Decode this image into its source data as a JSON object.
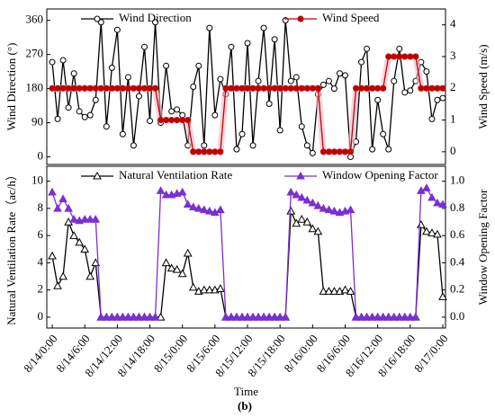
{
  "caption": "(b)",
  "chart_data": [
    {
      "type": "line",
      "ylabel": "Wind Direction (°)",
      "y2label": "Wind Speed (m/s)",
      "x": [
        0,
        1,
        2,
        3,
        4,
        5,
        6,
        7,
        8,
        9,
        10,
        11,
        12,
        13,
        14,
        15,
        16,
        17,
        18,
        19,
        20,
        21,
        22,
        23,
        24,
        25,
        26,
        27,
        28,
        29,
        30,
        31,
        32,
        33,
        34,
        35,
        36,
        37,
        38,
        39,
        40,
        41,
        42,
        43,
        44,
        45,
        46,
        47,
        48,
        49,
        50,
        51,
        52,
        53,
        54,
        55,
        56,
        57,
        58,
        59,
        60,
        61,
        62,
        63,
        64,
        65,
        66,
        67,
        68,
        69,
        70,
        71,
        72
      ],
      "xlim": [
        -1,
        72.5
      ],
      "ylim": [
        -20,
        390
      ],
      "yticks": [
        0,
        90,
        180,
        270,
        360
      ],
      "y2lim": [
        -0.4,
        4.5
      ],
      "y2ticks": [
        0,
        1,
        2,
        3,
        4
      ],
      "series": [
        {
          "name": "Wind Direction",
          "color": "#000000",
          "marker": "circle-open",
          "values": [
            250,
            100,
            255,
            130,
            220,
            120,
            105,
            110,
            150,
            355,
            80,
            235,
            335,
            60,
            210,
            30,
            160,
            290,
            95,
            355,
            90,
            240,
            120,
            125,
            110,
            30,
            185,
            240,
            30,
            340,
            110,
            205,
            165,
            290,
            20,
            60,
            300,
            30,
            200,
            340,
            140,
            310,
            70,
            360,
            200,
            210,
            80,
            30,
            10,
            165,
            190,
            200,
            180,
            220,
            215,
            0,
            40,
            250,
            285,
            20,
            150,
            60,
            20,
            200,
            285,
            170,
            175,
            200,
            250,
            225,
            100,
            150,
            155
          ]
        },
        {
          "name": "Wind Speed",
          "color": "#c00000",
          "marker": "circle",
          "axis": "y2",
          "values": [
            2,
            2,
            2,
            2,
            2,
            2,
            2,
            2,
            2,
            2,
            2,
            2,
            2,
            2,
            2,
            2,
            2,
            2,
            2,
            2,
            1,
            1,
            1,
            1,
            1,
            1,
            0,
            0,
            0,
            0,
            0,
            0,
            2,
            2,
            2,
            2,
            2,
            2,
            2,
            2,
            2,
            2,
            2,
            2,
            2,
            2,
            2,
            2,
            2,
            2,
            0,
            0,
            0,
            0,
            0,
            0,
            2,
            2,
            2,
            2,
            2,
            2,
            3,
            3,
            3,
            3,
            3,
            3,
            2,
            2,
            2,
            2,
            2
          ]
        }
      ]
    },
    {
      "type": "line",
      "ylabel": "Natural Ventilation Rate（ac/h）",
      "y2label": "Window Opening Factor",
      "xlabel": "Time",
      "x": [
        0,
        1,
        2,
        3,
        4,
        5,
        6,
        7,
        8,
        9,
        10,
        11,
        12,
        13,
        14,
        15,
        16,
        17,
        18,
        19,
        20,
        21,
        22,
        23,
        24,
        25,
        26,
        27,
        28,
        29,
        30,
        31,
        32,
        33,
        34,
        35,
        36,
        37,
        38,
        39,
        40,
        41,
        42,
        43,
        44,
        45,
        46,
        47,
        48,
        49,
        50,
        51,
        52,
        53,
        54,
        55,
        56,
        57,
        58,
        59,
        60,
        61,
        62,
        63,
        64,
        65,
        66,
        67,
        68,
        69,
        70,
        71,
        72
      ],
      "xlim": [
        -1,
        72.5
      ],
      "xticks": [
        {
          "value": 0,
          "label": "8/14/0:00"
        },
        {
          "value": 6,
          "label": "8/14/6:00"
        },
        {
          "value": 12,
          "label": "8/14/12:00"
        },
        {
          "value": 18,
          "label": "8/14/18:00"
        },
        {
          "value": 24,
          "label": "8/15/0:00"
        },
        {
          "value": 30,
          "label": "8/15/6:00"
        },
        {
          "value": 36,
          "label": "8/15/12:00"
        },
        {
          "value": 42,
          "label": "8/15/18:00"
        },
        {
          "value": 48,
          "label": "8/16/0:00"
        },
        {
          "value": 54,
          "label": "8/16/6:00"
        },
        {
          "value": 60,
          "label": "8/16/12:00"
        },
        {
          "value": 66,
          "label": "8/16/18:00"
        },
        {
          "value": 72,
          "label": "8/17/0:00"
        }
      ],
      "ylim": [
        -0.8,
        11.1
      ],
      "yticks": [
        0,
        2,
        4,
        6,
        8,
        10
      ],
      "y2lim": [
        -0.08,
        1.11
      ],
      "y2ticks": [
        {
          "value": 0,
          "label": "0.0"
        },
        0.2,
        0.4,
        0.6,
        0.8,
        {
          "value": 1,
          "label": "1.0"
        }
      ],
      "series": [
        {
          "name": "Natural Ventilation Rate",
          "color": "#000000",
          "marker": "triangle-open",
          "values": [
            4.5,
            2.3,
            3,
            7,
            6,
            5.5,
            5,
            3,
            4,
            0,
            0,
            0,
            0,
            0,
            0,
            0,
            0,
            0,
            0,
            0,
            0,
            4,
            3.6,
            3.5,
            3.2,
            4.7,
            2.2,
            1.9,
            2,
            2,
            2,
            2.1,
            0,
            0,
            0,
            0,
            0,
            0,
            0,
            0,
            0,
            0,
            0,
            0,
            7.8,
            6.9,
            7.2,
            7,
            6.5,
            6.3,
            1.9,
            1.9,
            1.9,
            1.9,
            2,
            1.9,
            0,
            0,
            0,
            0,
            0,
            0,
            0,
            0,
            0,
            0,
            0,
            0,
            6.8,
            6.3,
            6.2,
            6.1,
            1.5
          ]
        },
        {
          "name": "Window Opening Factor",
          "color": "#7b2fd6",
          "marker": "triangle",
          "axis": "y2",
          "values": [
            0.92,
            0.8,
            0.87,
            0.8,
            0.72,
            0.71,
            0.72,
            0.72,
            0.72,
            0,
            0,
            0,
            0,
            0,
            0,
            0,
            0,
            0,
            0,
            0,
            0.93,
            0.9,
            0.9,
            0.91,
            0.92,
            0.83,
            0.81,
            0.8,
            0.79,
            0.78,
            0.77,
            0.79,
            0,
            0,
            0,
            0,
            0,
            0,
            0,
            0,
            0,
            0,
            0,
            0,
            0.92,
            0.9,
            0.88,
            0.86,
            0.84,
            0.82,
            0.8,
            0.79,
            0.78,
            0.77,
            0.78,
            0.79,
            0,
            0,
            0,
            0,
            0,
            0,
            0,
            0,
            0,
            0,
            0,
            0,
            0.93,
            0.95,
            0.88,
            0.84,
            0.83
          ]
        }
      ]
    }
  ]
}
